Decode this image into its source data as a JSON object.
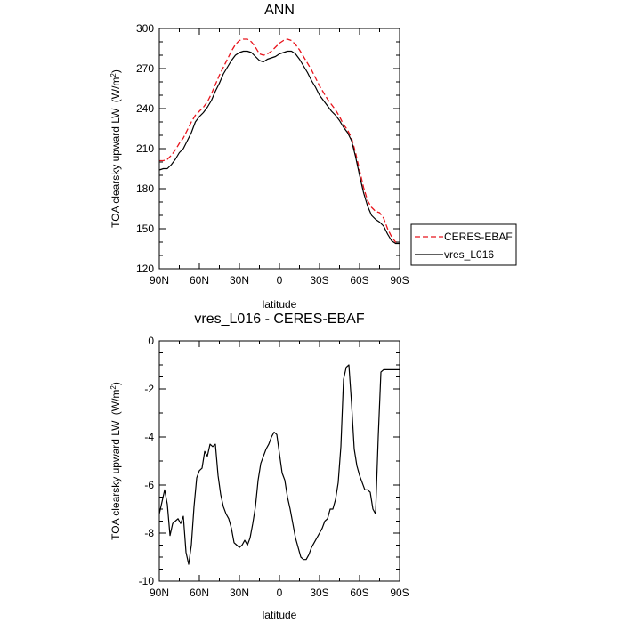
{
  "chart_data": [
    {
      "type": "line",
      "title": "ANN",
      "xlabel": "latitude",
      "ylabel": "TOA clearsky upward LW",
      "ylabel_units": "(W/m",
      "ylabel_units_sup": "2",
      "ylabel_units_end": ")",
      "xlim": [
        90,
        -90
      ],
      "ylim": [
        120,
        300
      ],
      "x_ticks": [
        90,
        60,
        30,
        0,
        -30,
        -60,
        -90
      ],
      "x_tick_labels": [
        "90N",
        "60N",
        "30N",
        "0",
        "30S",
        "60S",
        "90S"
      ],
      "y_ticks": [
        120,
        150,
        180,
        210,
        240,
        270,
        300
      ],
      "y_tick_labels": [
        "120",
        "150",
        "180",
        "210",
        "240",
        "270",
        "300"
      ],
      "legend_placement": "outside-right",
      "series": [
        {
          "name": "CERES-EBAF",
          "color": "#e8141c",
          "dash": "dashed",
          "x": [
            90,
            87,
            84,
            81,
            78,
            75,
            72,
            69,
            66,
            63,
            60,
            57,
            54,
            51,
            48,
            45,
            42,
            39,
            36,
            33,
            30,
            27,
            24,
            21,
            18,
            15,
            12,
            9,
            6,
            3,
            0,
            -3,
            -6,
            -9,
            -12,
            -15,
            -18,
            -21,
            -24,
            -27,
            -30,
            -33,
            -36,
            -39,
            -42,
            -45,
            -48,
            -51,
            -54,
            -57,
            -60,
            -63,
            -66,
            -69,
            -72,
            -75,
            -78,
            -81,
            -84,
            -87,
            -90
          ],
          "y": [
            201,
            201,
            202,
            205,
            209,
            214,
            218,
            224,
            230,
            235,
            238,
            241,
            245,
            251,
            258,
            265,
            271,
            277,
            283,
            288,
            291,
            292,
            292,
            290,
            286,
            281,
            280,
            281,
            283,
            286,
            289,
            291,
            292,
            291,
            288,
            284,
            279,
            274,
            269,
            263,
            257,
            252,
            247,
            243,
            239,
            234,
            228,
            224,
            218,
            207,
            194,
            181,
            171,
            166,
            163,
            162,
            158,
            150,
            144,
            140,
            140
          ]
        },
        {
          "name": "vres_L016",
          "color": "#000000",
          "dash": "solid",
          "x": [
            90,
            87,
            84,
            81,
            78,
            75,
            72,
            69,
            66,
            63,
            60,
            57,
            54,
            51,
            48,
            45,
            42,
            39,
            36,
            33,
            30,
            27,
            24,
            21,
            18,
            15,
            12,
            9,
            6,
            3,
            0,
            -3,
            -6,
            -9,
            -12,
            -15,
            -18,
            -21,
            -24,
            -27,
            -30,
            -33,
            -36,
            -39,
            -42,
            -45,
            -48,
            -51,
            -54,
            -57,
            -60,
            -63,
            -66,
            -69,
            -72,
            -75,
            -78,
            -81,
            -84,
            -87,
            -90
          ],
          "y": [
            194,
            195,
            195,
            198,
            202,
            207,
            210,
            216,
            222,
            230,
            234,
            237,
            241,
            246,
            253,
            259,
            266,
            271,
            276,
            280,
            282,
            283,
            283,
            282,
            279,
            276,
            275,
            277,
            278,
            279,
            281,
            282,
            283,
            283,
            281,
            277,
            272,
            267,
            261,
            256,
            250,
            246,
            242,
            238,
            235,
            231,
            226,
            222,
            216,
            204,
            190,
            177,
            167,
            160,
            157,
            155,
            152,
            146,
            141,
            139,
            139
          ]
        }
      ]
    },
    {
      "type": "line",
      "title": "vres_L016 - CERES-EBAF",
      "xlabel": "latitude",
      "ylabel": "TOA clearsky upward LW",
      "ylabel_units": "(W/m",
      "ylabel_units_sup": "2",
      "ylabel_units_end": ")",
      "xlim": [
        90,
        -90
      ],
      "ylim": [
        -10,
        0
      ],
      "x_ticks": [
        90,
        60,
        30,
        0,
        -30,
        -60,
        -90
      ],
      "x_tick_labels": [
        "90N",
        "60N",
        "30N",
        "0",
        "30S",
        "60S",
        "90S"
      ],
      "y_ticks": [
        -10,
        -8,
        -6,
        -4,
        -2,
        0
      ],
      "y_tick_labels": [
        "-10",
        "-8",
        "-6",
        "-4",
        "-2",
        "0"
      ],
      "series": [
        {
          "color": "#000000",
          "dash": "solid",
          "x": [
            90,
            88,
            86,
            84,
            82,
            80,
            78,
            76,
            74,
            72,
            70,
            68,
            66,
            64,
            62,
            60,
            58,
            56,
            54,
            52,
            50,
            48,
            46,
            44,
            42,
            40,
            38,
            36,
            34,
            32,
            30,
            28,
            26,
            24,
            22,
            20,
            18,
            16,
            14,
            12,
            10,
            8,
            6,
            4,
            2,
            0,
            -2,
            -4,
            -6,
            -8,
            -10,
            -12,
            -14,
            -16,
            -18,
            -20,
            -22,
            -24,
            -26,
            -28,
            -30,
            -32,
            -34,
            -36,
            -38,
            -40,
            -42,
            -44,
            -46,
            -48,
            -50,
            -52,
            -54,
            -56,
            -58,
            -60,
            -62,
            -64,
            -66,
            -68,
            -70,
            -72,
            -74,
            -76,
            -78,
            -80,
            -82,
            -84,
            -86,
            -88,
            -90
          ],
          "y": [
            -7.2,
            -6.7,
            -6.2,
            -6.8,
            -8.1,
            -7.6,
            -7.5,
            -7.4,
            -7.6,
            -7.3,
            -8.8,
            -9.3,
            -8.5,
            -6.9,
            -5.7,
            -5.4,
            -5.3,
            -4.6,
            -4.8,
            -4.3,
            -4.4,
            -4.3,
            -5.6,
            -6.4,
            -6.9,
            -7.2,
            -7.4,
            -7.8,
            -8.4,
            -8.5,
            -8.6,
            -8.5,
            -8.3,
            -8.5,
            -8.2,
            -7.6,
            -6.9,
            -5.8,
            -5.1,
            -4.8,
            -4.5,
            -4.3,
            -4.0,
            -3.8,
            -3.9,
            -4.7,
            -5.5,
            -5.8,
            -6.5,
            -7.0,
            -7.6,
            -8.2,
            -8.6,
            -9.0,
            -9.1,
            -9.1,
            -8.9,
            -8.6,
            -8.4,
            -8.2,
            -8.0,
            -7.8,
            -7.5,
            -7.4,
            -7.0,
            -7.0,
            -6.6,
            -5.9,
            -4.4,
            -1.6,
            -1.1,
            -1.0,
            -2.6,
            -4.5,
            -5.2,
            -5.6,
            -5.9,
            -6.2,
            -6.2,
            -6.3,
            -7.0,
            -7.2,
            -4.0,
            -1.3,
            -1.2,
            -1.2,
            -1.2,
            -1.2,
            -1.2,
            -1.2,
            -1.2
          ]
        }
      ]
    }
  ]
}
